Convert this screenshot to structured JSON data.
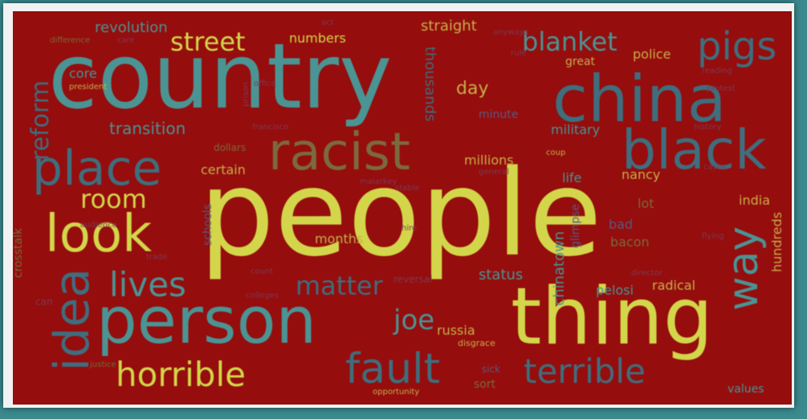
{
  "background_color": "#950d0d",
  "frame_color": "#f2f2f2",
  "outer_color": "#3a8a8e",
  "words": [
    {
      "text": "people",
      "color": "#d3d64a"
    },
    {
      "text": "country",
      "color": "#4b9494"
    },
    {
      "text": "thing",
      "color": "#d3d64a"
    },
    {
      "text": "person",
      "color": "#4b9494"
    },
    {
      "text": "china",
      "color": "#3f6e7e"
    },
    {
      "text": "racist",
      "color": "#7c6a3e"
    },
    {
      "text": "black",
      "color": "#3f6e7e"
    },
    {
      "text": "place",
      "color": "#3f6e7e"
    },
    {
      "text": "look",
      "color": "#d3d64a"
    },
    {
      "text": "idea",
      "color": "#3f6e7e"
    },
    {
      "text": "fault",
      "color": "#3f6e7e"
    },
    {
      "text": "horrible",
      "color": "#d3d64a"
    },
    {
      "text": "terrible",
      "color": "#3f6e7e"
    },
    {
      "text": "lives",
      "color": "#4b9494"
    },
    {
      "text": "matter",
      "color": "#3f6e7e"
    },
    {
      "text": "way",
      "color": "#4b9494"
    },
    {
      "text": "pigs",
      "color": "#3f6e7e"
    },
    {
      "text": "blanket",
      "color": "#4b9494"
    },
    {
      "text": "street",
      "color": "#d3d64a"
    },
    {
      "text": "room",
      "color": "#d3d64a"
    },
    {
      "text": "reform",
      "color": "#3f6e7e"
    },
    {
      "text": "transition",
      "color": "#4b9494"
    },
    {
      "text": "joe",
      "color": "#4b9494"
    },
    {
      "text": "revolution",
      "color": "#4b9494"
    },
    {
      "text": "numbers",
      "color": "#d3d64a"
    },
    {
      "text": "straight",
      "color": "#c8b04a"
    },
    {
      "text": "day",
      "color": "#c8b04a"
    },
    {
      "text": "core",
      "color": "#4b9494"
    },
    {
      "text": "thousands",
      "color": "#3f6e7e"
    },
    {
      "text": "police",
      "color": "#c8b04a"
    },
    {
      "text": "great",
      "color": "#c8b04a"
    },
    {
      "text": "military",
      "color": "#4b9494"
    },
    {
      "text": "millions",
      "color": "#c8b04a"
    },
    {
      "text": "certain",
      "color": "#c8b04a"
    },
    {
      "text": "nancy",
      "color": "#c8b04a"
    },
    {
      "text": "life",
      "color": "#4b9494"
    },
    {
      "text": "lot",
      "color": "#7c6a3e"
    },
    {
      "text": "india",
      "color": "#c8b04a"
    },
    {
      "text": "months",
      "color": "#c8b04a"
    },
    {
      "text": "chinatown",
      "color": "#4b9494"
    },
    {
      "text": "glimpse",
      "color": "#5a5a82"
    },
    {
      "text": "bad",
      "color": "#5a5a82"
    },
    {
      "text": "bacon",
      "color": "#7c6a3e"
    },
    {
      "text": "hundreds",
      "color": "#c8b04a"
    },
    {
      "text": "status",
      "color": "#4b9494"
    },
    {
      "text": "pelosi",
      "color": "#4b9494"
    },
    {
      "text": "radical",
      "color": "#c8b04a"
    },
    {
      "text": "russia",
      "color": "#c8b04a"
    },
    {
      "text": "values",
      "color": "#4b9494"
    },
    {
      "text": "sort",
      "color": "#7c6a3e"
    },
    {
      "text": "schools",
      "color": "#5a5a82"
    },
    {
      "text": "crosstalk",
      "color": "#7c6a3e"
    },
    {
      "text": "dollars",
      "color": "#7c6a3e"
    },
    {
      "text": "minute",
      "color": "#5a5a82"
    },
    {
      "text": "disgrace",
      "color": "#c8b04a"
    },
    {
      "text": "sick",
      "color": "#5a5a82"
    },
    {
      "text": "opportunity",
      "color": "#c8b04a"
    },
    {
      "text": "justice",
      "color": "#7c6a3e"
    },
    {
      "text": "difference",
      "color": "#7c6a3e"
    },
    {
      "text": "care",
      "color": "#7e3a55"
    },
    {
      "text": "president",
      "color": "#c8b04a"
    },
    {
      "text": "prison",
      "color": "#7e3a55"
    },
    {
      "text": "coup",
      "color": "#c8b04a"
    },
    {
      "text": "general",
      "color": "#7e3a55"
    },
    {
      "text": "count",
      "color": "#7e3a55"
    },
    {
      "text": "colleges",
      "color": "#7e3a55"
    },
    {
      "text": "director",
      "color": "#7e3a55"
    },
    {
      "text": "act",
      "color": "#7e3a55"
    },
    {
      "text": "audience",
      "color": "#7e3a55"
    },
    {
      "text": "reversal",
      "color": "#7e3a55"
    },
    {
      "text": "malarkey",
      "color": "#7e3a55"
    },
    {
      "text": "can",
      "color": "#7e3a55"
    },
    {
      "text": "hire",
      "color": "#7e3a55"
    },
    {
      "text": "office",
      "color": "#7e3a55"
    },
    {
      "text": "reading",
      "color": "#7e3a55"
    },
    {
      "text": "flying",
      "color": "#7e3a55"
    },
    {
      "text": "trade",
      "color": "#7e3a55"
    },
    {
      "text": "history",
      "color": "#7e3a55"
    },
    {
      "text": "francisco",
      "color": "#7e3a55"
    },
    {
      "text": "anyways",
      "color": "#7e3a55"
    },
    {
      "text": "protest",
      "color": "#7e3a55"
    },
    {
      "text": "stable",
      "color": "#7e3a55"
    },
    {
      "text": "rule",
      "color": "#7e3a55"
    },
    {
      "text": "cases",
      "color": "#7e3a55"
    }
  ]
}
